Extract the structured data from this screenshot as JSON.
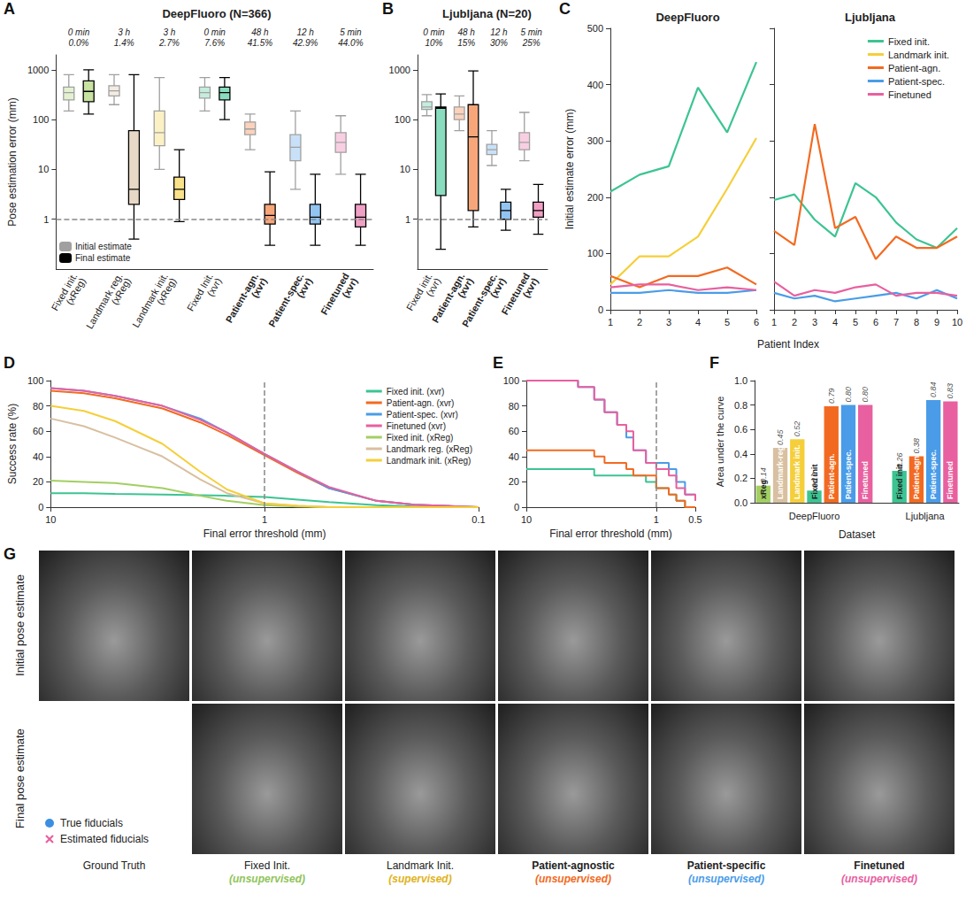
{
  "chart_data": [
    {
      "panel": "A",
      "type": "boxplot",
      "title": "DeepFluoro (N=366)",
      "ylabel": "Pose estimation error (mm)",
      "log": "y",
      "ylim": [
        0.1,
        2000
      ],
      "yticks": [
        1,
        10,
        100,
        1000
      ],
      "reference_line": 1,
      "legend": "lower left",
      "categories": [
        "Fixed init.\n(xReg)",
        "Landmark reg.\n(xReg)",
        "Landmark init.\n(xReg)",
        "Fixed Init.\n(xvr)",
        "Patient-agn.\n(xvr)",
        "Patient-spec.\n(xvr)",
        "Finetuned\n(xvr)"
      ],
      "bold": [
        false,
        false,
        false,
        false,
        true,
        true,
        true
      ],
      "colors": [
        "#a3cf62",
        "#d8c0a0",
        "#f5cf3a",
        "#3cc492",
        "#f26a21",
        "#4a9ce8",
        "#e8609f"
      ],
      "annotations": [
        "0 min\n0.0%",
        "3 h\n1.4%",
        "3 h\n2.7%",
        "0 min\n7.6%",
        "48 h\n41.5%",
        "12 h\n42.9%",
        "5 min\n44.0%"
      ],
      "series": [
        {
          "name": "Initial estimate",
          "color": "#a0a0a0",
          "values": [
            [
              150,
              250,
              350,
              450,
              800
            ],
            [
              200,
              300,
              380,
              480,
              800
            ],
            [
              10,
              30,
              55,
              150,
              700
            ],
            [
              150,
              270,
              350,
              450,
              700
            ],
            [
              25,
              50,
              65,
              90,
              130
            ],
            [
              4,
              15,
              28,
              50,
              150
            ],
            [
              8,
              22,
              35,
              55,
              120
            ]
          ]
        },
        {
          "name": "Final estimate",
          "color": "#000000",
          "values": [
            [
              130,
              230,
              370,
              600,
              1000
            ],
            [
              0.4,
              2,
              4,
              60,
              800
            ],
            [
              0.9,
              2.5,
              4,
              7,
              25
            ],
            [
              100,
              250,
              350,
              450,
              700
            ],
            [
              0.3,
              0.8,
              1.2,
              2,
              9
            ],
            [
              0.3,
              0.8,
              1.1,
              2,
              8
            ],
            [
              0.3,
              0.7,
              1.1,
              2,
              8
            ]
          ]
        }
      ]
    },
    {
      "panel": "B",
      "type": "boxplot",
      "title": "Ljubljana (N=20)",
      "log": "y",
      "ylim": [
        0.1,
        2000
      ],
      "yticks": [
        1,
        10,
        100,
        1000
      ],
      "reference_line": 1,
      "categories": [
        "Fixed init.\n(xvr)",
        "Patient-agn.\n(xvr)",
        "Patient-spec.\n(xvr)",
        "Finetuned\n(xvr)"
      ],
      "bold": [
        false,
        true,
        true,
        true
      ],
      "colors": [
        "#3cc492",
        "#f26a21",
        "#4a9ce8",
        "#e8609f"
      ],
      "annotations": [
        "0 min\n10%",
        "48 h\n15%",
        "12 h\n30%",
        "5 min\n25%"
      ],
      "series": [
        {
          "color": "#a0a0a0",
          "values": [
            [
              120,
              160,
              180,
              230,
              320
            ],
            [
              60,
              100,
              130,
              180,
              300
            ],
            [
              12,
              20,
              25,
              32,
              60
            ],
            [
              15,
              25,
              35,
              55,
              140
            ]
          ]
        },
        {
          "color": "#000000",
          "values": [
            [
              0.25,
              3,
              170,
              180,
              330
            ],
            [
              0.7,
              1.5,
              45,
              200,
              950
            ],
            [
              0.6,
              1,
              1.5,
              2.2,
              4
            ],
            [
              0.5,
              1.1,
              1.5,
              2.2,
              5
            ]
          ]
        }
      ]
    },
    {
      "panel": "C",
      "type": "line",
      "ylabel": "Initial estimate error (mm)",
      "xlabel": "Patient Index",
      "ylim": [
        0,
        500
      ],
      "yticks": [
        0,
        100,
        200,
        300,
        400,
        500
      ],
      "legend": "upper right",
      "subplots": [
        {
          "title": "DeepFluoro",
          "x": [
            1,
            2,
            3,
            4,
            5,
            6
          ],
          "xlim": [
            1,
            6
          ],
          "xticks": [
            1,
            2,
            3,
            4,
            5,
            6
          ],
          "series": [
            {
              "name": "Fixed init.",
              "color": "#3cc492",
              "values": [
                210,
                240,
                255,
                395,
                315,
                440
              ]
            },
            {
              "name": "Landmark init.",
              "color": "#f5cf3a",
              "values": [
                45,
                95,
                95,
                130,
                215,
                305
              ]
            },
            {
              "name": "Patient-agn.",
              "color": "#f26a21",
              "values": [
                60,
                40,
                60,
                60,
                75,
                45
              ]
            },
            {
              "name": "Patient-spec.",
              "color": "#4a9ce8",
              "values": [
                30,
                30,
                35,
                30,
                30,
                35
              ]
            },
            {
              "name": "Finetuned",
              "color": "#e8609f",
              "values": [
                40,
                45,
                45,
                35,
                40,
                35
              ]
            }
          ]
        },
        {
          "title": "Ljubljana",
          "x": [
            1,
            2,
            3,
            4,
            5,
            6,
            7,
            8,
            9,
            10
          ],
          "xlim": [
            1,
            10
          ],
          "xticks": [
            1,
            2,
            3,
            4,
            5,
            6,
            7,
            8,
            9,
            10
          ],
          "series": [
            {
              "name": "Fixed init.",
              "color": "#3cc492",
              "values": [
                195,
                205,
                160,
                130,
                225,
                200,
                155,
                125,
                110,
                145
              ]
            },
            {
              "name": "Patient-agn.",
              "color": "#f26a21",
              "values": [
                140,
                115,
                330,
                145,
                165,
                90,
                130,
                110,
                110,
                130
              ]
            },
            {
              "name": "Patient-spec.",
              "color": "#4a9ce8",
              "values": [
                30,
                20,
                25,
                15,
                20,
                25,
                30,
                20,
                35,
                20
              ]
            },
            {
              "name": "Finetuned",
              "color": "#e8609f",
              "values": [
                50,
                25,
                35,
                30,
                40,
                45,
                25,
                30,
                30,
                25
              ]
            }
          ]
        }
      ]
    },
    {
      "panel": "D",
      "type": "line",
      "ylabel": "Success rate (%)",
      "xlabel": "Final error threshold (mm)",
      "log": "x",
      "xlim": [
        10,
        0.1
      ],
      "xticks": [
        10,
        1,
        0.1
      ],
      "ylim": [
        0,
        100
      ],
      "yticks": [
        0,
        20,
        40,
        60,
        80,
        100
      ],
      "reference_line": 1,
      "legend": "upper right",
      "x": [
        10,
        7,
        5,
        3,
        2,
        1.5,
        1,
        0.7,
        0.5,
        0.3,
        0.2,
        0.1
      ],
      "series": [
        {
          "name": "Fixed init. (xvr)",
          "color": "#3cc492",
          "values": [
            11,
            11,
            10.5,
            10,
            9.5,
            9,
            8,
            6,
            4,
            1.5,
            0.5,
            0
          ]
        },
        {
          "name": "Patient-agn. (xvr)",
          "color": "#f26a21",
          "values": [
            92,
            90,
            86,
            78,
            67,
            57,
            41,
            27,
            15,
            5,
            2,
            0
          ]
        },
        {
          "name": "Patient-spec. (xvr)",
          "color": "#4a9ce8",
          "values": [
            94,
            92,
            88,
            80,
            70,
            59,
            42,
            28,
            15,
            5,
            2,
            0
          ]
        },
        {
          "name": "Finetuned (xvr)",
          "color": "#e8609f",
          "values": [
            94,
            92,
            88,
            80,
            69,
            59,
            42,
            28,
            16,
            5,
            2,
            0
          ]
        },
        {
          "name": "Fixed init. (xReg)",
          "color": "#a3cf62",
          "values": [
            21,
            20,
            19,
            15,
            9,
            5,
            1.5,
            0.5,
            0,
            0,
            0,
            0
          ]
        },
        {
          "name": "Landmark reg. (xReg)",
          "color": "#d8c0a0",
          "values": [
            70,
            64,
            55,
            40,
            22,
            11,
            3,
            1,
            0,
            0,
            0,
            0
          ]
        },
        {
          "name": "Landmark init. (xReg)",
          "color": "#f5cf3a",
          "values": [
            80,
            76,
            68,
            50,
            28,
            14,
            3,
            1,
            0,
            0,
            0,
            0
          ]
        }
      ]
    },
    {
      "panel": "E",
      "type": "step",
      "xlabel": "Final error threshold (mm)",
      "log": "x",
      "xlim": [
        10,
        0.5
      ],
      "xticks": [
        10,
        1,
        0.5
      ],
      "ylim": [
        0,
        100
      ],
      "yticks": [
        0,
        20,
        40,
        60,
        80,
        100
      ],
      "reference_line": 1,
      "x": [
        10,
        5,
        4,
        3,
        2.5,
        2,
        1.7,
        1.5,
        1.2,
        1,
        0.8,
        0.7,
        0.6,
        0.5
      ],
      "series": [
        {
          "name": "Fixed init. (xvr)",
          "color": "#3cc492",
          "values": [
            30,
            30,
            30,
            25,
            25,
            25,
            25,
            25,
            20,
            15,
            10,
            5,
            0,
            0
          ]
        },
        {
          "name": "Patient-agn. (xvr)",
          "color": "#f26a21",
          "values": [
            45,
            45,
            45,
            40,
            35,
            35,
            30,
            25,
            25,
            15,
            10,
            5,
            0,
            0
          ]
        },
        {
          "name": "Patient-spec. (xvr)",
          "color": "#4a9ce8",
          "values": [
            100,
            100,
            95,
            85,
            75,
            65,
            55,
            45,
            35,
            35,
            30,
            20,
            10,
            5
          ]
        },
        {
          "name": "Finetuned (xvr)",
          "color": "#e8609f",
          "values": [
            100,
            100,
            95,
            85,
            75,
            65,
            60,
            45,
            35,
            30,
            25,
            15,
            10,
            5
          ]
        }
      ]
    },
    {
      "panel": "F",
      "type": "bar",
      "ylabel": "Area under the curve",
      "xlabel": "Dataset",
      "ylim": [
        0,
        1
      ],
      "yticks": [
        {
          "value": 0,
          "label": "0.0"
        },
        0.2,
        0.4,
        0.6,
        0.8,
        {
          "value": 1,
          "label": "1.0"
        }
      ],
      "data_labels": true,
      "tick_labels": "y",
      "groups": [
        {
          "label": "DeepFluoro",
          "bars": [
            "xReg",
            "Landmark-reg.",
            "Landmark init.",
            "Fixed init",
            "Patient-agn.",
            "Patient-spec.",
            "Finetuned"
          ],
          "values": [
            0.14,
            0.45,
            0.52,
            0.1,
            0.79,
            0.8,
            0.8
          ],
          "value_labels": [
            "0.14",
            "0.45",
            "0.52",
            "0.10",
            "0.79",
            "0.80",
            "0.80"
          ],
          "colors": [
            "#a3cf62",
            "#d8c0a0",
            "#f5cf3a",
            "#3cc492",
            "#f26a21",
            "#4a9ce8",
            "#e8609f"
          ]
        },
        {
          "label": "Ljubljana",
          "bars": [
            "Fixed init",
            "Patient-agn.",
            "Patient-spec.",
            "Finetuned"
          ],
          "values": [
            0.26,
            0.38,
            0.84,
            0.83
          ],
          "value_labels": [
            "0.26",
            "0.38",
            "0.84",
            "0.83"
          ],
          "colors": [
            "#3cc492",
            "#f26a21",
            "#4a9ce8",
            "#e8609f"
          ]
        }
      ]
    }
  ],
  "panel_g": {
    "panel": "G",
    "row_labels": [
      "Initial pose estimate",
      "Final pose estimate"
    ],
    "columns": [
      {
        "title": "Ground Truth",
        "bold": false
      },
      {
        "title": "Fixed Init.",
        "subtitle": "(unsupervised)",
        "color": "#8fc45a",
        "bold": false
      },
      {
        "title": "Landmark Init.",
        "subtitle": "(supervised)",
        "color": "#e0b21a",
        "bold": false
      },
      {
        "title": "Patient-agnostic",
        "subtitle": "(unsupervised)",
        "color": "#f26a21",
        "bold": true
      },
      {
        "title": "Patient-specific",
        "subtitle": "(unsupervised)",
        "color": "#4a9ce8",
        "bold": true
      },
      {
        "title": "Finetuned",
        "subtitle": "(unsupervised)",
        "color": "#e8609f",
        "bold": true
      }
    ],
    "legend": [
      {
        "label": "True fiducials",
        "color": "#3b8fe0",
        "marker": "circle"
      },
      {
        "label": "Estimated fiducials",
        "color": "#e8609f",
        "marker": "x"
      }
    ]
  }
}
